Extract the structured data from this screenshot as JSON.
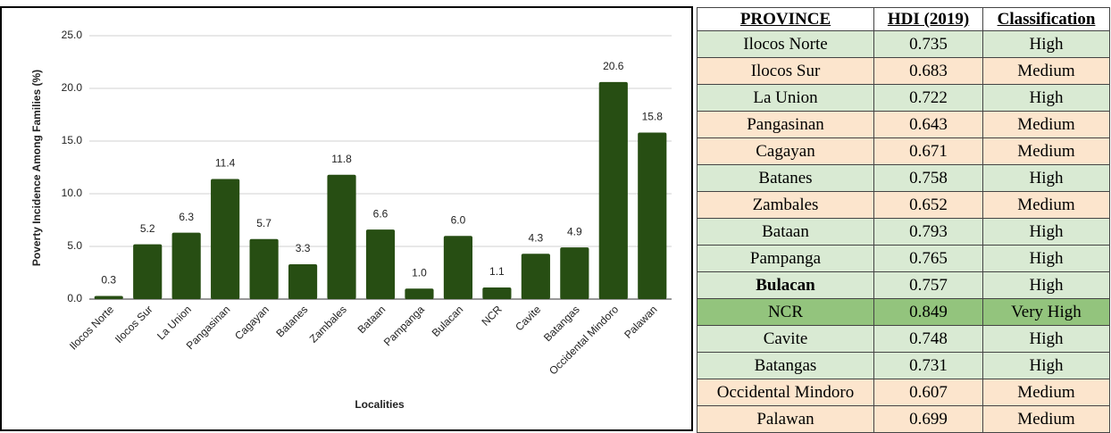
{
  "chart_data": {
    "type": "bar",
    "x_label": "Localities",
    "y_label": "Poverty Incidence Among Families (%)",
    "categories": [
      "Ilocos Norte",
      "Ilocos Sur",
      "La Union",
      "Pangasinan",
      "Cagayan",
      "Batanes",
      "Zambales",
      "Bataan",
      "Pampanga",
      "Bulacan",
      "NCR",
      "Cavite",
      "Batangas",
      "Occidental Mindoro",
      "Palawan"
    ],
    "values": [
      0.3,
      5.2,
      6.3,
      11.4,
      5.7,
      3.3,
      11.8,
      6.6,
      1.0,
      6.0,
      1.1,
      4.3,
      4.9,
      20.6,
      15.8
    ],
    "value_labels": [
      "0.3",
      "5.2",
      "6.3",
      "11.4",
      "5.7",
      "3.3",
      "11.8",
      "6.6",
      "1.0",
      "6.0",
      "1.1",
      "4.3",
      "4.9",
      "20.6",
      "15.8"
    ],
    "color": "#274e13",
    "ylim": [
      0,
      25
    ],
    "yticks": [
      {
        "value": 0,
        "label": "0.0"
      },
      {
        "value": 5,
        "label": "5.0"
      },
      {
        "value": 10,
        "label": "10.0"
      },
      {
        "value": 15,
        "label": "15.0"
      },
      {
        "value": 20,
        "label": "20.0"
      },
      {
        "value": 25,
        "label": "25.0"
      }
    ],
    "grid": true
  },
  "table": {
    "header": [
      "PROVINCE",
      "HDI (2019)",
      "Classification"
    ],
    "rows": [
      [
        "Ilocos Norte",
        0.735,
        "High"
      ],
      [
        "Ilocos Sur",
        0.683,
        "Medium"
      ],
      [
        "La Union",
        0.722,
        "High"
      ],
      [
        "Pangasinan",
        0.643,
        "Medium"
      ],
      [
        "Cagayan",
        0.671,
        "Medium"
      ],
      [
        "Batanes",
        0.758,
        "High"
      ],
      [
        "Zambales",
        0.652,
        "Medium"
      ],
      [
        "Bataan",
        0.793,
        "High"
      ],
      [
        "Pampanga",
        0.765,
        "High"
      ],
      [
        "Bulacan",
        0.757,
        "High"
      ],
      [
        "NCR",
        0.849,
        "Very High"
      ],
      [
        "Cavite",
        0.748,
        "High"
      ],
      [
        "Batangas",
        0.731,
        "High"
      ],
      [
        "Occidental Mindoro",
        0.607,
        "Medium"
      ],
      [
        "Palawan",
        0.699,
        "Medium"
      ]
    ],
    "row_colors": [
      "#d9ead3",
      "#fce5cd",
      "#d9ead3",
      "#fce5cd",
      "#fce5cd",
      "#d9ead3",
      "#fce5cd",
      "#d9ead3",
      "#d9ead3",
      "#d9ead3",
      "#93c47d",
      "#d9ead3",
      "#d9ead3",
      "#fce5cd",
      "#fce5cd"
    ]
  }
}
